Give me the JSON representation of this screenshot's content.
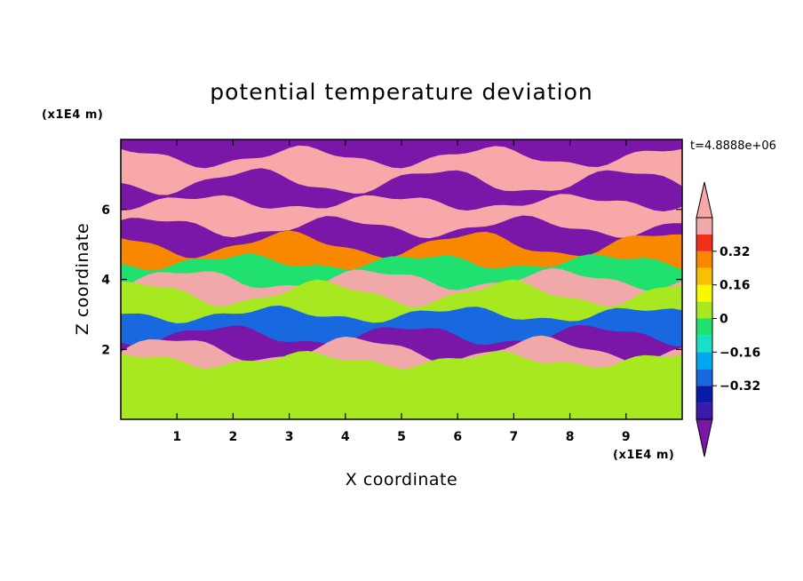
{
  "chart_data": {
    "type": "heatmap",
    "title": "potential temperature deviation",
    "xlabel": "X coordinate",
    "ylabel": "Z coordinate",
    "x_unit": "(x1E4 m)",
    "y_unit": "(x1E4 m)",
    "time_label": "t=4.8888e+06",
    "xlim": [
      0,
      10
    ],
    "ylim": [
      0,
      8
    ],
    "x_ticks": [
      "1",
      "2",
      "3",
      "4",
      "5",
      "6",
      "7",
      "8",
      "9"
    ],
    "y_ticks": [
      "2",
      "4",
      "6"
    ],
    "colorbar": {
      "levels": [
        -0.48,
        -0.4,
        -0.32,
        -0.24,
        -0.16,
        -0.08,
        0,
        0.08,
        0.16,
        0.24,
        0.32,
        0.4,
        0.48
      ],
      "labels": [
        "0.32",
        "0.16",
        "0",
        "−0.16",
        "−0.32"
      ],
      "label_values": [
        0.32,
        0.16,
        0,
        -0.16,
        -0.32
      ],
      "colors": [
        "#7a16a8",
        "#3a1aa8",
        "#0a1aa8",
        "#1868e0",
        "#00a8f0",
        "#18e0c8",
        "#20e070",
        "#a8e820",
        "#f8f800",
        "#f8c000",
        "#f88800",
        "#f03018",
        "#f0a8a8",
        "#f8a8a8"
      ],
      "extend": "both"
    },
    "bands": [
      {
        "z_range": [
          7.5,
          8.0
        ],
        "value": -0.5
      },
      {
        "z_range": [
          6.8,
          7.5
        ],
        "value": 0.5
      },
      {
        "z_range": [
          6.2,
          6.8
        ],
        "value": -0.5
      },
      {
        "z_range": [
          5.5,
          6.2
        ],
        "value": 0.5
      },
      {
        "z_range": [
          5.0,
          5.5
        ],
        "value": -0.5
      },
      {
        "z_range": [
          4.5,
          5.0
        ],
        "value": 0.3
      },
      {
        "z_range": [
          4.0,
          4.5
        ],
        "value": -0.05
      },
      {
        "z_range": [
          3.6,
          4.0
        ],
        "value": 0.45
      },
      {
        "z_range": [
          3.0,
          3.6
        ],
        "value": 0.05
      },
      {
        "z_range": [
          2.4,
          3.0
        ],
        "value": -0.3
      },
      {
        "z_range": [
          2.0,
          2.4
        ],
        "value": -0.5
      },
      {
        "z_range": [
          1.7,
          2.0
        ],
        "value": 0.45
      },
      {
        "z_range": [
          0.0,
          1.7
        ],
        "value": 0.0
      }
    ]
  }
}
